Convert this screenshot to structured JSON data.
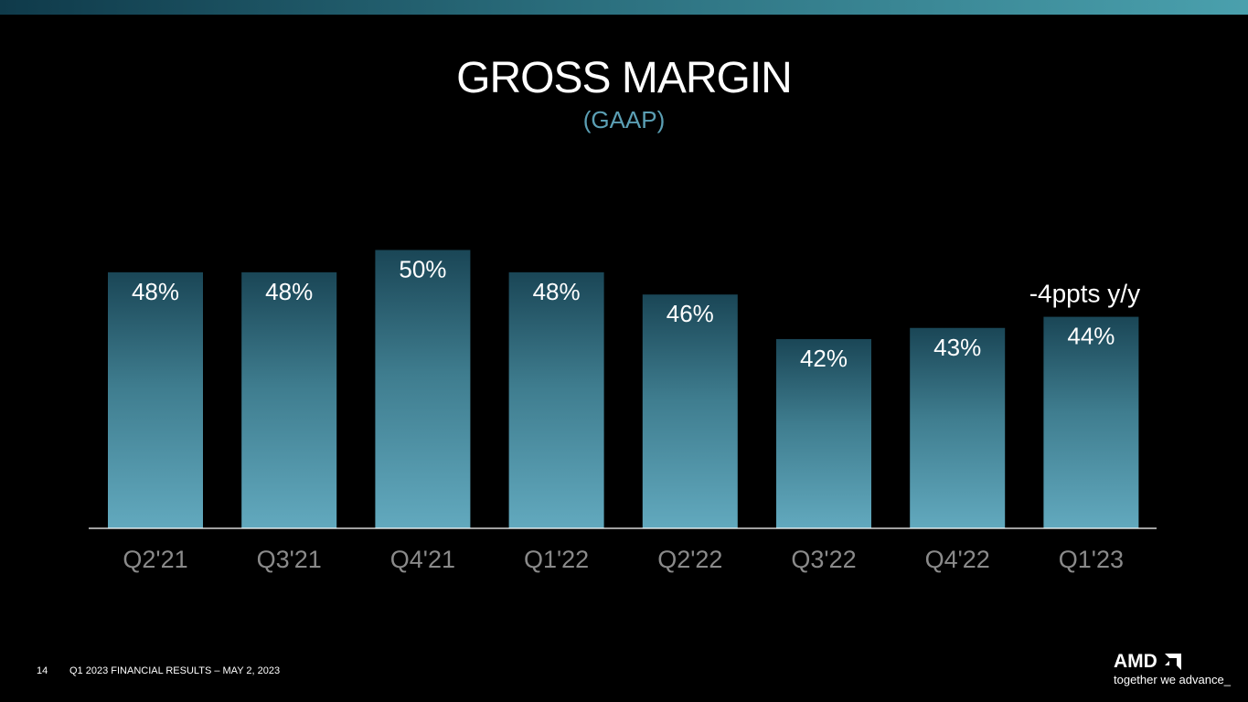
{
  "slide": {
    "title": "GROSS MARGIN",
    "subtitle": "(GAAP)",
    "page_number": "14",
    "footer": "Q1 2023 FINANCIAL RESULTS – MAY 2, 2023",
    "logo_text": "AMD",
    "tagline": "together we advance_"
  },
  "colors": {
    "background": "#000000",
    "bar_top": "#1a4656",
    "bar_bottom": "#62a9be",
    "subtitle": "#5b9fb4"
  },
  "chart_data": {
    "type": "bar",
    "title": "GROSS MARGIN",
    "subtitle": "(GAAP)",
    "categories": [
      "Q2'21",
      "Q3'21",
      "Q4'21",
      "Q1'22",
      "Q2'22",
      "Q3'22",
      "Q4'22",
      "Q1'23"
    ],
    "values": [
      48,
      48,
      50,
      48,
      46,
      42,
      43,
      44
    ],
    "value_labels": [
      "48%",
      "48%",
      "50%",
      "48%",
      "46%",
      "42%",
      "43%",
      "44%"
    ],
    "unit": "%",
    "ylim": [
      25,
      50
    ],
    "grid": false,
    "annotations": [
      {
        "category": "Q1'23",
        "text": "-4ppts y/y"
      }
    ]
  }
}
